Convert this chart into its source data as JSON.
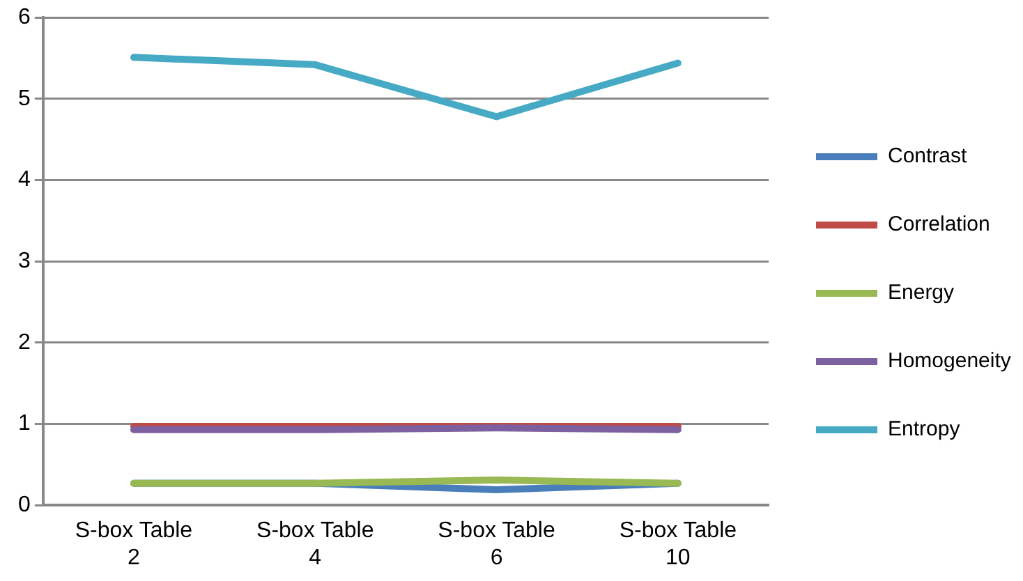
{
  "chart_data": {
    "type": "line",
    "categories": [
      "S-box Table 2",
      "S-box Table 4",
      "S-box Table 6",
      "S-box Table 10"
    ],
    "series": [
      {
        "name": "Contrast",
        "color": "#4a7ebb",
        "values": [
          0.27,
          0.27,
          0.19,
          0.27
        ]
      },
      {
        "name": "Correlation",
        "color": "#be4b48",
        "values": [
          0.97,
          0.97,
          0.97,
          0.97
        ]
      },
      {
        "name": "Energy",
        "color": "#98b954",
        "values": [
          0.27,
          0.27,
          0.31,
          0.27
        ]
      },
      {
        "name": "Homogeneity",
        "color": "#7d60a0",
        "values": [
          0.93,
          0.93,
          0.95,
          0.93
        ]
      },
      {
        "name": "Entropy",
        "color": "#46aac5",
        "values": [
          5.51,
          5.42,
          4.78,
          5.44
        ]
      }
    ],
    "ylim": [
      0,
      6
    ],
    "yticks": [
      0,
      1,
      2,
      3,
      4,
      5,
      6
    ],
    "grid": "y",
    "legend": "right",
    "marker": "none",
    "line_style": "solid"
  }
}
